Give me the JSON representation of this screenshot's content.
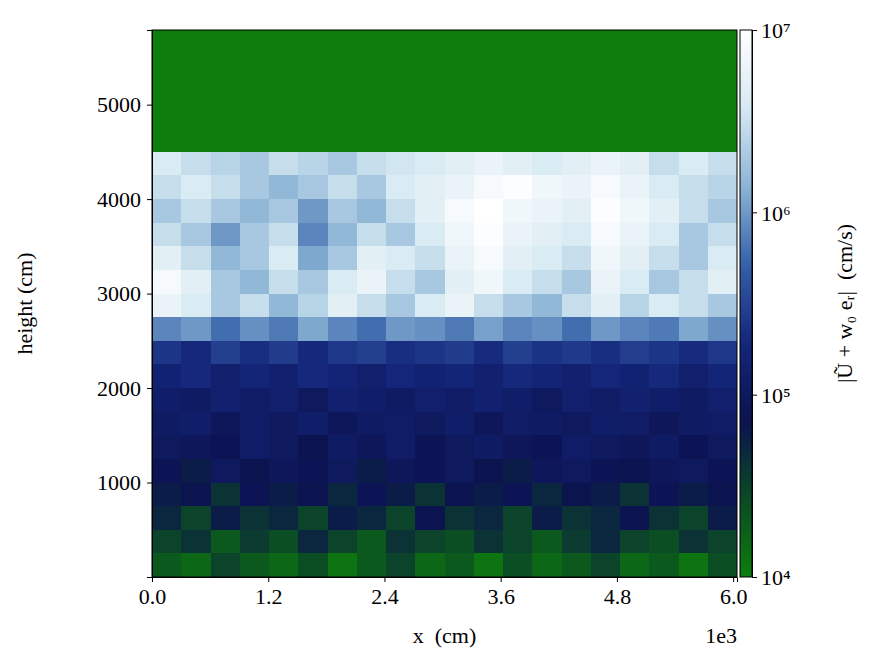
{
  "chart_data": {
    "type": "heatmap",
    "x_label": "x  (cm)",
    "y_label": "height (cm)",
    "annotations": [
      {
        "text": "1e3"
      }
    ],
    "xlim": [
      0,
      6040
    ],
    "ylim": [
      0,
      5790
    ],
    "xticks": [
      {
        "value": 0,
        "label": "0.0"
      },
      {
        "value": 1200,
        "label": "1.2"
      },
      {
        "value": 2400,
        "label": "2.4"
      },
      {
        "value": 3600,
        "label": "3.6"
      },
      {
        "value": 4800,
        "label": "4.8"
      },
      {
        "value": 6000,
        "label": "6.0"
      }
    ],
    "yticks": [
      1000,
      2000,
      3000,
      4000,
      5000
    ],
    "x_edges": [
      0,
      302,
      604,
      906,
      1208,
      1510,
      1812,
      2114,
      2416,
      2718,
      3020,
      3322,
      3624,
      3926,
      4228,
      4530,
      4832,
      5134,
      5436,
      5738,
      6040
    ],
    "y_edges": [
      0,
      250,
      500,
      750,
      1000,
      1250,
      1500,
      1750,
      2000,
      2250,
      2500,
      2750,
      3000,
      3250,
      3500,
      3750,
      4000,
      4250,
      4500,
      5790
    ],
    "cells": [
      [
        20000.0,
        15000.0,
        30000.0,
        20000.0,
        15000.0,
        25000.0,
        12000.0,
        20000.0,
        30000.0,
        15000.0,
        20000.0,
        12000.0,
        25000.0,
        15000.0,
        20000.0,
        30000.0,
        15000.0,
        20000.0,
        12000.0,
        25000.0
      ],
      [
        30000.0,
        40000.0,
        20000.0,
        35000.0,
        25000.0,
        50000.0,
        30000.0,
        20000.0,
        40000.0,
        30000.0,
        25000.0,
        40000.0,
        30000.0,
        20000.0,
        35000.0,
        50000.0,
        30000.0,
        25000.0,
        40000.0,
        30000.0
      ],
      [
        50000.0,
        30000.0,
        60000.0,
        40000.0,
        50000.0,
        30000.0,
        60000.0,
        50000.0,
        30000.0,
        70000.0,
        40000.0,
        50000.0,
        30000.0,
        60000.0,
        40000.0,
        50000.0,
        70000.0,
        40000.0,
        30000.0,
        60000.0
      ],
      [
        60000.0,
        70000.0,
        40000.0,
        80000.0,
        60000.0,
        70000.0,
        50000.0,
        80000.0,
        60000.0,
        40000.0,
        70000.0,
        60000.0,
        80000.0,
        50000.0,
        70000.0,
        60000.0,
        40000.0,
        80000.0,
        60000.0,
        70000.0
      ],
      [
        80000.0,
        60000.0,
        100000.0,
        70000.0,
        90000.0,
        80000.0,
        100000.0,
        60000.0,
        90000.0,
        80000.0,
        100000.0,
        70000.0,
        60000.0,
        90000.0,
        100000.0,
        80000.0,
        70000.0,
        90000.0,
        100000.0,
        80000.0
      ],
      [
        100000.0,
        90000.0,
        80000.0,
        120000.0,
        100000.0,
        70000.0,
        110000.0,
        90000.0,
        120000.0,
        80000.0,
        100000.0,
        110000.0,
        90000.0,
        80000.0,
        120000.0,
        100000.0,
        90000.0,
        110000.0,
        80000.0,
        100000.0
      ],
      [
        110000.0,
        130000.0,
        90000.0,
        120000.0,
        100000.0,
        130000.0,
        90000.0,
        110000.0,
        120000.0,
        100000.0,
        130000.0,
        90000.0,
        120000.0,
        110000.0,
        100000.0,
        130000.0,
        120000.0,
        90000.0,
        110000.0,
        120000.0
      ],
      [
        130000.0,
        110000.0,
        150000.0,
        120000.0,
        140000.0,
        100000.0,
        150000.0,
        130000.0,
        110000.0,
        140000.0,
        120000.0,
        150000.0,
        130000.0,
        100000.0,
        140000.0,
        120000.0,
        150000.0,
        130000.0,
        110000.0,
        140000.0
      ],
      [
        160000.0,
        200000.0,
        140000.0,
        180000.0,
        150000.0,
        200000.0,
        170000.0,
        140000.0,
        190000.0,
        160000.0,
        180000.0,
        150000.0,
        200000.0,
        170000.0,
        150000.0,
        190000.0,
        160000.0,
        200000.0,
        140000.0,
        180000.0
      ],
      [
        250000.0,
        200000.0,
        300000.0,
        220000.0,
        280000.0,
        200000.0,
        260000.0,
        300000.0,
        220000.0,
        250000.0,
        280000.0,
        210000.0,
        300000.0,
        240000.0,
        270000.0,
        220000.0,
        290000.0,
        250000.0,
        210000.0,
        260000.0
      ],
      [
        800000.0,
        1000000.0,
        600000.0,
        900000.0,
        700000.0,
        1200000.0,
        800000.0,
        600000.0,
        1000000.0,
        900000.0,
        700000.0,
        1100000.0,
        800000.0,
        900000.0,
        600000.0,
        1000000.0,
        800000.0,
        700000.0,
        1200000.0,
        900000.0
      ],
      [
        6000000.0,
        4000000.0,
        2000000.0,
        3000000.0,
        1500000.0,
        2500000.0,
        5000000.0,
        3000000.0,
        2000000.0,
        4000000.0,
        6000000.0,
        3000000.0,
        2000000.0,
        1500000.0,
        3000000.0,
        5000000.0,
        2500000.0,
        4000000.0,
        3000000.0,
        2000000.0
      ],
      [
        8000000.0,
        5000000.0,
        2000000.0,
        1500000.0,
        3000000.0,
        2000000.0,
        4000000.0,
        6000000.0,
        3000000.0,
        2000000.0,
        5000000.0,
        7000000.0,
        4000000.0,
        3000000.0,
        2000000.0,
        6000000.0,
        4000000.0,
        2000000.0,
        3000000.0,
        5000000.0
      ],
      [
        5000000.0,
        3000000.0,
        1500000.0,
        2000000.0,
        4000000.0,
        1200000.0,
        2000000.0,
        5000000.0,
        4000000.0,
        3000000.0,
        6000000.0,
        8000000.0,
        5000000.0,
        4000000.0,
        3000000.0,
        7000000.0,
        5000000.0,
        3000000.0,
        2000000.0,
        4000000.0
      ],
      [
        3000000.0,
        2000000.0,
        1000000.0,
        2000000.0,
        3000000.0,
        800000.0,
        1500000.0,
        3000000.0,
        2000000.0,
        4000000.0,
        7000000.0,
        9000000.0,
        6000000.0,
        5000000.0,
        4000000.0,
        8000000.0,
        6000000.0,
        4000000.0,
        2000000.0,
        3000000.0
      ],
      [
        2000000.0,
        3000000.0,
        2000000.0,
        1500000.0,
        2000000.0,
        1000000.0,
        2000000.0,
        1500000.0,
        3000000.0,
        5000000.0,
        8000000.0,
        10000000.0,
        7000000.0,
        6000000.0,
        5000000.0,
        9000000.0,
        7000000.0,
        5000000.0,
        3000000.0,
        2000000.0
      ],
      [
        3000000.0,
        4000000.0,
        3000000.0,
        2000000.0,
        1500000.0,
        2000000.0,
        3000000.0,
        2000000.0,
        4000000.0,
        5000000.0,
        6000000.0,
        8000000.0,
        9000000.0,
        7000000.0,
        6000000.0,
        8000000.0,
        6000000.0,
        4000000.0,
        3000000.0,
        2500000.0
      ],
      [
        4000000.0,
        3000000.0,
        2500000.0,
        2000000.0,
        3000000.0,
        2500000.0,
        2000000.0,
        3000000.0,
        3500000.0,
        4000000.0,
        5000000.0,
        6000000.0,
        5000000.0,
        4000000.0,
        5000000.0,
        6000000.0,
        5000000.0,
        3000000.0,
        4000000.0,
        3000000.0
      ],
      [
        10000.0,
        10000.0,
        10000.0,
        10000.0,
        10000.0,
        10000.0,
        10000.0,
        10000.0,
        10000.0,
        10000.0,
        10000.0,
        10000.0,
        10000.0,
        10000.0,
        10000.0,
        10000.0,
        10000.0,
        10000.0,
        10000.0,
        10000.0
      ]
    ],
    "colorbar": {
      "label": "|Ũ + w₀ eᵣ|  (cm/s)",
      "log": true,
      "range": [
        10000.0,
        10000000.0
      ],
      "ticks": [
        {
          "value": 10000.0,
          "label": "10⁴"
        },
        {
          "value": 100000.0,
          "label": "10⁵"
        },
        {
          "value": 1000000.0,
          "label": "10⁶"
        },
        {
          "value": 10000000.0,
          "label": "10⁷"
        }
      ]
    }
  }
}
